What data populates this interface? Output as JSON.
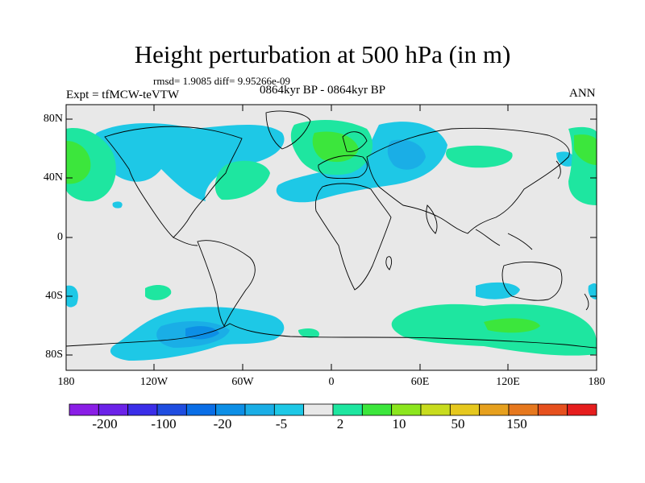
{
  "title": "Height perturbation at 500 hPa (in m)",
  "stats": "rmsd= 1.9085 diff= 9.95266e-09",
  "experiment": "Expt = tfMCW-teVTW",
  "period": "0864kyr BP - 0864kyr BP",
  "season": "ANN",
  "lat_ticks": [
    "80N",
    "40N",
    "0",
    "40S",
    "80S"
  ],
  "lon_ticks": [
    "180",
    "120W",
    "60W",
    "0",
    "60E",
    "120E",
    "180"
  ],
  "colorbar": {
    "labels": [
      "-200",
      "-100",
      "-20",
      "-5",
      "2",
      "10",
      "50",
      "150"
    ],
    "colors": [
      "#8a1ee6",
      "#6b22e8",
      "#3b2ee8",
      "#1f4de0",
      "#0a6ee6",
      "#0d8fe6",
      "#1aaee6",
      "#1ec8e6",
      "#e8e8e8",
      "#1ee6a0",
      "#3ce63c",
      "#8ce61e",
      "#c8dc1e",
      "#e6c81e",
      "#e6a01e",
      "#e6781e",
      "#e6501e",
      "#e61e1e"
    ]
  },
  "map_colors": {
    "ocean_bg": "#e8e8e8",
    "light_blue": "#1ec8e6",
    "mid_blue": "#1aaee6",
    "deep_blue": "#0d8fe6",
    "light_green": "#1ee6a0",
    "green": "#3ce63c"
  }
}
